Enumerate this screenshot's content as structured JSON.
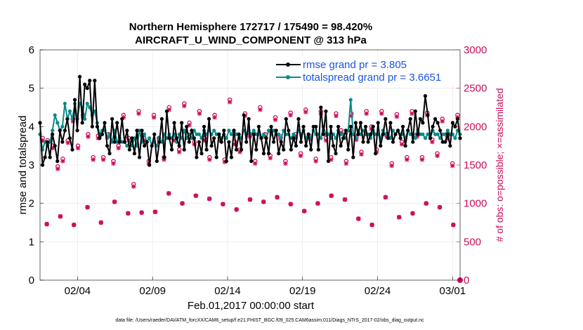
{
  "chart_data": {
    "type": "line",
    "title_line1": "Northern Hemisphere 172717 / 175490 = 98.420%",
    "title_line2": "AIRCRAFT_U_WIND_COMPONENT @ 313 hPa",
    "xlabel": "Feb.01,2017 00:00:00 start",
    "ylabel": "rmse and totalspread",
    "y2label": "# of obs: o=possible; ×=assimilated",
    "footnote": "data file: /Users/raeder/DAI/ATM_forcXX/CAM6_setup/f.e21.FHIST_BGC.f09_025.CAM6assim.011/Diags_NTrS_2017-02/obs_diag_output.nc",
    "xlim": [
      1,
      29
    ],
    "ylim": [
      0,
      6
    ],
    "y2lim": [
      0,
      3000
    ],
    "x_ticks": [
      3.5,
      8.5,
      13.5,
      18.5,
      23.5,
      28.5
    ],
    "x_tick_labels": [
      "02/04",
      "02/09",
      "02/14",
      "02/19",
      "02/24",
      "03/01"
    ],
    "y_ticks": [
      "0",
      "1",
      "2",
      "3",
      "4",
      "5",
      "6"
    ],
    "y2_ticks": [
      "0",
      "500",
      "1000",
      "1500",
      "2000",
      "2500",
      "3000"
    ],
    "series": [
      {
        "name": "rmse",
        "legend": "rmse grand pr = 3.805",
        "color": "#000000",
        "values": [
          4.1,
          3.0,
          3.2,
          3.6,
          3.2,
          3.8,
          3.5,
          3.1,
          3.9,
          3.6,
          3.9,
          4.2,
          3.7,
          3.4,
          4.7,
          3.9,
          5.3,
          4.1,
          5.1,
          5.0,
          5.2,
          4.0,
          5.2,
          4.0,
          3.7,
          3.8,
          4.1,
          3.5,
          3.3,
          4.2,
          3.6,
          4.1,
          3.6,
          4.2,
          3.6,
          3.9,
          3.4,
          3.7,
          3.3,
          3.9,
          3.2,
          3.9,
          3.5,
          3.6,
          3.0,
          3.5,
          3.8,
          3.1,
          3.6,
          4.2,
          3.2,
          4.4,
          3.7,
          3.4,
          4.1,
          3.7,
          3.5,
          4.1,
          3.4,
          4.0,
          3.6,
          3.9,
          3.7,
          3.2,
          3.6,
          3.3,
          4.0,
          3.4,
          4.2,
          3.5,
          3.7,
          3.2,
          3.8,
          3.6,
          3.9,
          3.1,
          3.6,
          3.2,
          3.9,
          3.4,
          3.8,
          3.4,
          4.3,
          3.6,
          4.2,
          3.1,
          3.8,
          3.4,
          4.0,
          3.7,
          3.3,
          3.7,
          3.3,
          4.0,
          3.6,
          3.9,
          3.3,
          3.6,
          3.4,
          4.2,
          3.9,
          3.4,
          3.7,
          3.5,
          4.2,
          3.6,
          4.0,
          3.5,
          3.8,
          3.4,
          4.0,
          4.0,
          3.4,
          4.5,
          3.8,
          4.4,
          3.1,
          4.0,
          3.5,
          3.3,
          4.0,
          3.5,
          3.7,
          3.9,
          3.4,
          4.0,
          3.2,
          4.1,
          3.8,
          4.1,
          3.6,
          4.0,
          3.6,
          3.8,
          4.0,
          3.3,
          4.1,
          3.5,
          3.8,
          4.2,
          3.7,
          4.1,
          3.6,
          3.8,
          3.9,
          3.7,
          4.0,
          3.5,
          3.9,
          4.2,
          3.6,
          4.4,
          3.8,
          4.2,
          4.1,
          4.8,
          4.3,
          3.7,
          4.0,
          4.2,
          4.1,
          3.9,
          3.6,
          3.6,
          3.8,
          3.5,
          4.1,
          4.0,
          4.2,
          3.7
        ]
      },
      {
        "name": "totalspread",
        "legend": "totalspread grand pr = 3.6651",
        "color": "#0c8a8a",
        "values": [
          3.8,
          3.4,
          3.6,
          3.5,
          3.6,
          3.9,
          4.3,
          4.1,
          3.9,
          4.0,
          4.6,
          4.2,
          4.4,
          4.2,
          4.6,
          4.2,
          4.6,
          4.5,
          4.2,
          4.6,
          4.5,
          4.3,
          4.4,
          4.1,
          3.8,
          3.9,
          3.9,
          3.7,
          3.8,
          3.6,
          3.9,
          3.6,
          3.7,
          3.6,
          3.6,
          3.5,
          3.6,
          3.5,
          3.7,
          3.5,
          3.9,
          3.6,
          3.8,
          3.6,
          3.7,
          3.5,
          3.6,
          3.5,
          3.7,
          3.6,
          3.8,
          3.7,
          3.8,
          3.7,
          3.8,
          3.6,
          3.8,
          3.7,
          3.9,
          3.7,
          3.8,
          3.7,
          3.9,
          3.8,
          3.8,
          3.7,
          3.9,
          3.8,
          3.9,
          3.8,
          3.9,
          3.8,
          3.8,
          3.7,
          3.8,
          3.7,
          3.9,
          3.8,
          3.9,
          3.8,
          3.8,
          3.7,
          3.9,
          3.8,
          3.9,
          3.8,
          3.9,
          3.8,
          3.8,
          3.7,
          3.8,
          3.7,
          3.9,
          3.8,
          3.9,
          3.8,
          3.8,
          3.7,
          3.9,
          3.8,
          3.8,
          3.7,
          3.8,
          3.7,
          3.9,
          3.8,
          3.9,
          3.7,
          3.8,
          3.7,
          3.9,
          3.8,
          3.8,
          3.7,
          4.0,
          3.8,
          3.8,
          3.7,
          3.8,
          3.7,
          3.9,
          3.8,
          3.8,
          3.7,
          3.9,
          4.7,
          3.8,
          3.7,
          3.9,
          3.8,
          3.9,
          3.8,
          3.8,
          3.7,
          3.9,
          3.8,
          3.8,
          3.7,
          3.9,
          3.8,
          3.8,
          3.7,
          3.9,
          3.8,
          3.9,
          3.8,
          3.8,
          3.7,
          3.9,
          3.8,
          3.8,
          3.7,
          3.9,
          3.8,
          3.8,
          3.7,
          3.8,
          3.7,
          3.9,
          3.8,
          3.8,
          3.7,
          3.8,
          3.8,
          3.9,
          3.8,
          3.8,
          3.7,
          3.9,
          3.8
        ]
      }
    ],
    "obs_counts": {
      "color": "#cc0a5a",
      "possible": [
        1850,
        1820,
        1750,
        1480,
        1580,
        1820,
        2100,
        1750,
        2150,
        1900,
        1600,
        1880,
        1600,
        1900,
        1550,
        1750,
        2150,
        1850,
        1250,
        2200,
        1850,
        1550,
        2150,
        1850,
        1600,
        2250,
        1850,
        1700,
        2300,
        2050,
        1800,
        2200,
        1850,
        1600,
        2150,
        1850,
        1570,
        2350,
        1800,
        1700,
        2170,
        1900,
        1550,
        2250,
        1900,
        1620,
        2120,
        1870,
        1550,
        2180,
        1900,
        1650,
        2220,
        1870,
        1580,
        2200,
        1850,
        1600,
        2170,
        1950,
        1550,
        2170,
        1860,
        1670,
        2200,
        2000,
        1700,
        2200,
        1900,
        1520,
        2160,
        1800,
        1600,
        2200,
        1900,
        1600,
        2180,
        1830,
        1650,
        2100,
        1870,
        1520,
        2150
      ],
      "assimilated": [
        1820,
        1790,
        1720,
        1450,
        1550,
        1790,
        2070,
        1720,
        2120,
        1870,
        1570,
        1850,
        1570,
        1870,
        1520,
        1720,
        2120,
        1820,
        1220,
        2170,
        1820,
        1520,
        2120,
        1820,
        1570,
        2220,
        1820,
        1670,
        2270,
        2020,
        1770,
        2170,
        1820,
        1570,
        2120,
        1820,
        1540,
        2320,
        1770,
        1670,
        2140,
        1870,
        1520,
        2220,
        1870,
        1590,
        2090,
        1840,
        1520,
        2150,
        1870,
        1620,
        2190,
        1840,
        1550,
        2170,
        1820,
        1570,
        2140,
        1920,
        1520,
        2140,
        1830,
        1640,
        2170,
        1970,
        1670,
        2170,
        1870,
        1490,
        2130,
        1770,
        1570,
        2170,
        1870,
        1570,
        2150,
        1800,
        1620,
        2070,
        1840,
        1490,
        2120
      ]
    },
    "obs_counts_low": [
      730,
      830,
      720,
      950,
      750,
      1020,
      870,
      880,
      890,
      1130,
      1000,
      1100,
      1060,
      990,
      920,
      1050,
      1020,
      1080,
      990,
      900,
      1000,
      1100,
      1050,
      800,
      720,
      1080,
      820,
      870,
      1000,
      950,
      720
    ]
  }
}
